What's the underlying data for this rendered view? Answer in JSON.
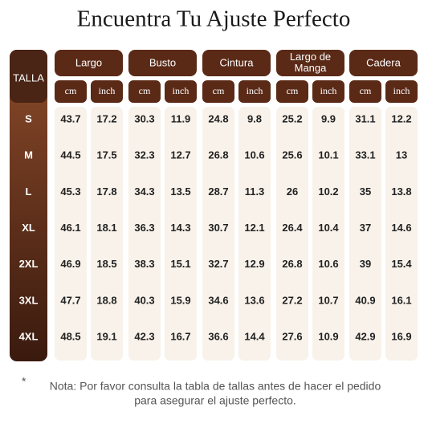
{
  "header": {
    "title": "Encuentra Tu Ajuste Perfecto"
  },
  "table": {
    "size_header": "TALLA",
    "groups": [
      "Largo",
      "Busto",
      "Cintura",
      "Largo de Manga",
      "Cadera"
    ],
    "units": [
      "cm",
      "inch",
      "cm",
      "inch",
      "cm",
      "inch",
      "cm",
      "inch",
      "cm",
      "inch"
    ],
    "rows": [
      [
        "S",
        43.7,
        17.2,
        30.3,
        11.9,
        24.8,
        9.8,
        25.2,
        9.9,
        31.1,
        12.2
      ],
      [
        "M",
        44.5,
        17.5,
        32.3,
        12.7,
        26.8,
        10.6,
        25.6,
        10.1,
        33.1,
        13
      ],
      [
        "L",
        45.3,
        17.8,
        34.3,
        13.5,
        28.7,
        11.3,
        26,
        10.2,
        35,
        13.8
      ],
      [
        "XL",
        46.1,
        18.1,
        36.3,
        14.3,
        30.7,
        12.1,
        26.4,
        10.4,
        37,
        14.6
      ],
      [
        "2XL",
        46.9,
        18.5,
        38.3,
        15.1,
        32.7,
        12.9,
        26.8,
        10.6,
        39,
        15.4
      ],
      [
        "3XL",
        47.7,
        18.8,
        40.3,
        15.9,
        34.6,
        13.6,
        27.2,
        10.7,
        40.9,
        16.1
      ],
      [
        "4XL",
        48.5,
        19.1,
        42.3,
        16.7,
        36.6,
        14.4,
        27.6,
        10.9,
        42.9,
        16.9
      ]
    ]
  },
  "note": {
    "marker": "*",
    "line1": "Nota: Por favor consulta la tabla de tallas antes de hacer el pedido",
    "line2": "para asegurar el ajuste perfecto."
  }
}
